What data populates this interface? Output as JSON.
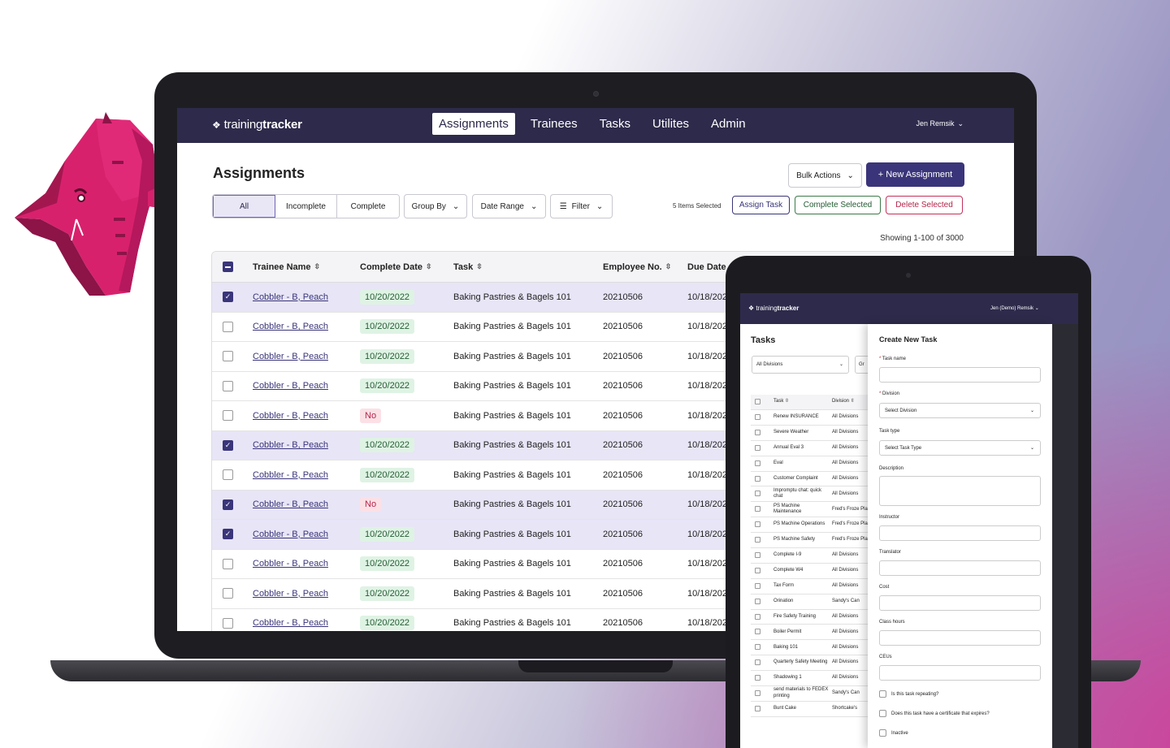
{
  "brand": {
    "logo_light": "training",
    "logo_bold": "tracker",
    "mark": "❖"
  },
  "nav": {
    "tabs": [
      {
        "label": "Assignments",
        "active": true
      },
      {
        "label": "Trainees",
        "active": false
      },
      {
        "label": "Tasks",
        "active": false
      },
      {
        "label": "Utilites",
        "active": false
      },
      {
        "label": "Admin",
        "active": false
      }
    ],
    "user": "Jen Remsik"
  },
  "page": {
    "title": "Assignments",
    "bulk_actions": "Bulk Actions",
    "new_assignment": "+ New Assignment",
    "segments": [
      "All",
      "Incomplete",
      "Complete"
    ],
    "group_by": "Group By",
    "date_range": "Date Range",
    "filter": "Filter",
    "selected_count": "5 Items Selected",
    "assign_task": "Assign Task",
    "complete_selected": "Complete Selected",
    "delete_selected": "Delete Selected",
    "showing": "Showing 1-100 of 3000"
  },
  "table": {
    "headers": {
      "name": "Trainee Name",
      "complete_date": "Complete Date",
      "task": "Task",
      "employee_no": "Employee No.",
      "due_date": "Due Date"
    },
    "rows": [
      {
        "name": "Cobbler - B, Peach",
        "complete": "10/20/2022",
        "task": "Baking Pastries & Bagels 101",
        "emp": "20210506",
        "due": "10/18/2022",
        "selected": true
      },
      {
        "name": "Cobbler - B, Peach",
        "complete": "10/20/2022",
        "task": "Baking Pastries & Bagels 101",
        "emp": "20210506",
        "due": "10/18/2022",
        "selected": false
      },
      {
        "name": "Cobbler - B, Peach",
        "complete": "10/20/2022",
        "task": "Baking Pastries & Bagels 101",
        "emp": "20210506",
        "due": "10/18/2022",
        "selected": false
      },
      {
        "name": "Cobbler - B, Peach",
        "complete": "10/20/2022",
        "task": "Baking Pastries & Bagels 101",
        "emp": "20210506",
        "due": "10/18/2022",
        "selected": false
      },
      {
        "name": "Cobbler - B, Peach",
        "complete": "No",
        "task": "Baking Pastries & Bagels 101",
        "emp": "20210506",
        "due": "10/18/2022",
        "selected": false
      },
      {
        "name": "Cobbler - B, Peach",
        "complete": "10/20/2022",
        "task": "Baking Pastries & Bagels 101",
        "emp": "20210506",
        "due": "10/18/2022",
        "selected": true
      },
      {
        "name": "Cobbler - B, Peach",
        "complete": "10/20/2022",
        "task": "Baking Pastries & Bagels 101",
        "emp": "20210506",
        "due": "10/18/2022",
        "selected": false
      },
      {
        "name": "Cobbler - B, Peach",
        "complete": "No",
        "task": "Baking Pastries & Bagels 101",
        "emp": "20210506",
        "due": "10/18/2022",
        "selected": true
      },
      {
        "name": "Cobbler - B, Peach",
        "complete": "10/20/2022",
        "task": "Baking Pastries & Bagels 101",
        "emp": "20210506",
        "due": "10/18/2022",
        "selected": true
      },
      {
        "name": "Cobbler - B, Peach",
        "complete": "10/20/2022",
        "task": "Baking Pastries & Bagels 101",
        "emp": "20210506",
        "due": "10/18/2022",
        "selected": false
      },
      {
        "name": "Cobbler - B, Peach",
        "complete": "10/20/2022",
        "task": "Baking Pastries & Bagels 101",
        "emp": "20210506",
        "due": "10/18/2022",
        "selected": false
      },
      {
        "name": "Cobbler - B, Peach",
        "complete": "10/20/2022",
        "task": "Baking Pastries & Bagels 101",
        "emp": "20210506",
        "due": "10/18/2022",
        "selected": false
      }
    ]
  },
  "tablet": {
    "user": "Jen (Demo) Remsik",
    "title": "Tasks",
    "division_filter": "All Divisions",
    "group_partial": "Gr",
    "headers": {
      "task": "Task",
      "division": "Division"
    },
    "tasks": [
      {
        "task": "Renew INSURANCE",
        "division": "All Divisions"
      },
      {
        "task": "Severe Weather",
        "division": "All Divisions"
      },
      {
        "task": "Annual Eval 3",
        "division": "All Divisions"
      },
      {
        "task": "Eval",
        "division": "All Divisions"
      },
      {
        "task": "Customer Complaint",
        "division": "All Divisions"
      },
      {
        "task": "Impromptu chat: quick chat",
        "division": "All Divisions"
      },
      {
        "task": "PS Machine Maintenance",
        "division": "Fred's Froze Plant"
      },
      {
        "task": "PS Machine Operations",
        "division": "Fred's Froze Plant"
      },
      {
        "task": "PS Machine Safety",
        "division": "Fred's Froze Plant"
      },
      {
        "task": "Complete I-9",
        "division": "All Divisions"
      },
      {
        "task": "Complete W4",
        "division": "All Divisions"
      },
      {
        "task": "Tax Form",
        "division": "All Divisions"
      },
      {
        "task": "Orination",
        "division": "Sandy's Can"
      },
      {
        "task": "Fire Safety Training",
        "division": "All Divisions"
      },
      {
        "task": "Boiler Permit",
        "division": "All Divisions"
      },
      {
        "task": "Baking 101",
        "division": "All Divisions"
      },
      {
        "task": "Quarterly Safety Meeting",
        "division": "All Divisions"
      },
      {
        "task": "Shadowing 1",
        "division": "All Divisions"
      },
      {
        "task": "send materials to FEDEX printing",
        "division": "Sandy's Can"
      },
      {
        "task": "Bunt Cake",
        "division": "Shortcake's"
      }
    ],
    "drawer": {
      "title": "Create New Task",
      "task_name": "Task name",
      "division": "Division",
      "division_placeholder": "Select Division",
      "task_type": "Task type",
      "task_type_placeholder": "Select Task Type",
      "description": "Description",
      "instructor": "Instructor",
      "translator": "Translator",
      "cost": "Cost",
      "class_hours": "Class hours",
      "ceus": "CEUs",
      "repeating": "Is this task repeating?",
      "certificate": "Does this task have a certificate that expires?",
      "inactive": "Inactive",
      "required_mark": "*"
    }
  },
  "colors": {
    "nav": "#2d2a4b",
    "primary": "#3a357a",
    "mascot": "#d8216d",
    "mascot_dark": "#8c1447"
  }
}
